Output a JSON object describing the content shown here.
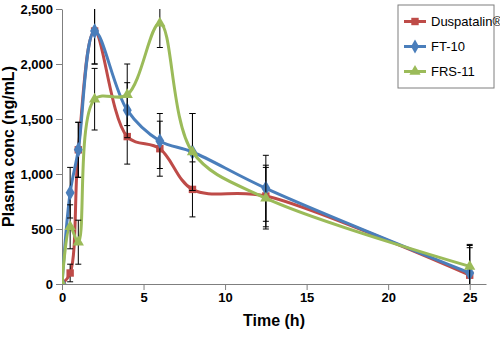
{
  "chart_data": {
    "type": "line",
    "x_label": "Time (h)",
    "y_label": "Plasma conc (ng/mL)",
    "x": [
      0,
      0.5,
      1,
      2,
      4,
      6,
      8,
      12.5,
      25
    ],
    "xlim": [
      0,
      26
    ],
    "xticks": [
      0,
      5,
      10,
      15,
      20,
      25
    ],
    "ylim": [
      0,
      2500
    ],
    "yticks": [
      0,
      500,
      {
        "value": 1000,
        "label": "1,000"
      },
      {
        "value": 1500,
        "label": "1,500"
      },
      {
        "value": 2000,
        "label": "2,000"
      },
      {
        "value": 2500,
        "label": "2,500"
      }
    ],
    "grid": false,
    "legend": "upper right",
    "series": [
      {
        "name": "Duspatalin®",
        "color": "#be4b48",
        "marker": "square",
        "line_style": "smooth",
        "values": [
          0,
          100,
          1220,
          2300,
          1340,
          1230,
          860,
          800,
          80
        ],
        "errors": [
          0,
          80,
          250,
          300,
          250,
          250,
          250,
          280,
          250
        ]
      },
      {
        "name": "FT-10",
        "color": "#4a7ebb",
        "marker": "diamond",
        "line_style": "smooth",
        "values": [
          0,
          830,
          1220,
          2300,
          1580,
          1300,
          1200,
          870,
          100
        ],
        "errors": [
          0,
          230,
          250,
          300,
          250,
          250,
          350,
          300,
          250
        ]
      },
      {
        "name": "FRS-11",
        "color": "#9bbb59",
        "marker": "triangle",
        "line_style": "smooth",
        "values": [
          0,
          520,
          380,
          1680,
          1720,
          2370,
          1200,
          780,
          160
        ],
        "errors": [
          0,
          200,
          200,
          280,
          280,
          220,
          350,
          280,
          200
        ]
      }
    ]
  }
}
